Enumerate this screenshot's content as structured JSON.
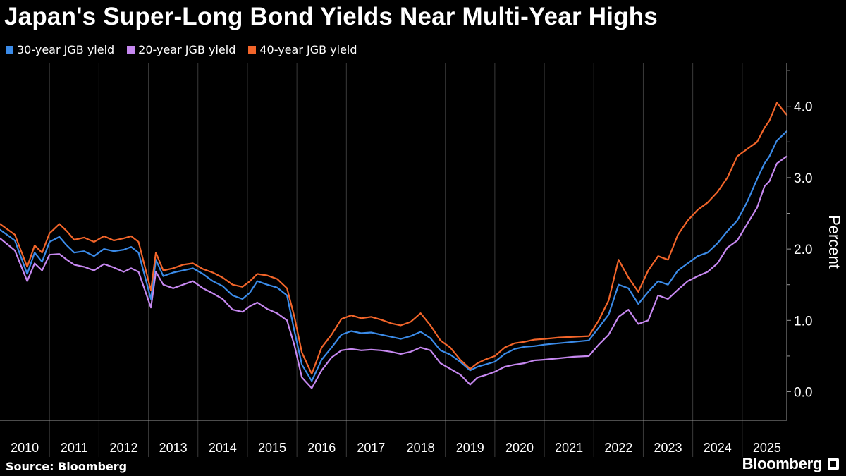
{
  "chart_data": {
    "type": "line",
    "title": "Japan's Super-Long Bond Yields Near Multi-Year Highs",
    "ylabel": "Percent",
    "xlabel": "",
    "ylim": [
      -0.4,
      4.6
    ],
    "xlim": [
      2010.0,
      2025.9
    ],
    "x_ticks": [
      "2010",
      "2011",
      "2012",
      "2013",
      "2014",
      "2015",
      "2016",
      "2017",
      "2018",
      "2019",
      "2020",
      "2021",
      "2022",
      "2023",
      "2024",
      "2025"
    ],
    "y_ticks": [
      {
        "value": 0.0,
        "label": "0.0"
      },
      {
        "value": 1.0,
        "label": "1.0"
      },
      {
        "value": 2.0,
        "label": "2.0"
      },
      {
        "value": 3.0,
        "label": "3.0"
      },
      {
        "value": 4.0,
        "label": "4.0"
      }
    ],
    "grid": "vertical",
    "legend_position": "top-left",
    "series": [
      {
        "name": "30-year JGB yield",
        "color": "#3b8be8",
        "x": [
          2010.0,
          2010.3,
          2010.55,
          2010.7,
          2010.85,
          2011.0,
          2011.2,
          2011.35,
          2011.5,
          2011.7,
          2011.9,
          2012.1,
          2012.3,
          2012.5,
          2012.65,
          2012.8,
          2013.05,
          2013.15,
          2013.3,
          2013.5,
          2013.7,
          2013.9,
          2014.1,
          2014.3,
          2014.5,
          2014.7,
          2014.9,
          2015.05,
          2015.2,
          2015.4,
          2015.6,
          2015.8,
          2015.95,
          2016.1,
          2016.3,
          2016.5,
          2016.7,
          2016.9,
          2017.1,
          2017.3,
          2017.5,
          2017.7,
          2017.9,
          2018.1,
          2018.3,
          2018.5,
          2018.7,
          2018.9,
          2019.1,
          2019.3,
          2019.5,
          2019.65,
          2019.8,
          2020.0,
          2020.2,
          2020.4,
          2020.6,
          2020.8,
          2021.0,
          2021.3,
          2021.6,
          2021.9,
          2022.1,
          2022.3,
          2022.5,
          2022.7,
          2022.9,
          2023.1,
          2023.3,
          2023.5,
          2023.7,
          2023.9,
          2024.1,
          2024.3,
          2024.5,
          2024.7,
          2024.9,
          2025.1,
          2025.3,
          2025.45,
          2025.55,
          2025.7,
          2025.9
        ],
        "values": [
          2.27,
          2.12,
          1.65,
          1.95,
          1.82,
          2.1,
          2.17,
          2.05,
          1.95,
          1.97,
          1.9,
          2.0,
          1.97,
          1.99,
          2.03,
          1.95,
          1.3,
          1.85,
          1.62,
          1.67,
          1.7,
          1.73,
          1.65,
          1.55,
          1.48,
          1.35,
          1.3,
          1.39,
          1.55,
          1.5,
          1.46,
          1.35,
          0.85,
          0.38,
          0.15,
          0.45,
          0.62,
          0.8,
          0.85,
          0.82,
          0.83,
          0.8,
          0.77,
          0.74,
          0.78,
          0.84,
          0.75,
          0.58,
          0.52,
          0.42,
          0.3,
          0.35,
          0.38,
          0.42,
          0.53,
          0.6,
          0.63,
          0.64,
          0.66,
          0.68,
          0.7,
          0.72,
          0.9,
          1.08,
          1.5,
          1.45,
          1.23,
          1.4,
          1.55,
          1.5,
          1.7,
          1.8,
          1.9,
          1.95,
          2.08,
          2.25,
          2.4,
          2.66,
          2.98,
          3.2,
          3.3,
          3.52,
          3.65
        ]
      },
      {
        "name": "20-year JGB yield",
        "color": "#c688f0",
        "x": [
          2010.0,
          2010.3,
          2010.55,
          2010.7,
          2010.85,
          2011.0,
          2011.2,
          2011.35,
          2011.5,
          2011.7,
          2011.9,
          2012.1,
          2012.3,
          2012.5,
          2012.65,
          2012.8,
          2013.05,
          2013.15,
          2013.3,
          2013.5,
          2013.7,
          2013.9,
          2014.1,
          2014.3,
          2014.5,
          2014.7,
          2014.9,
          2015.05,
          2015.2,
          2015.4,
          2015.6,
          2015.8,
          2015.95,
          2016.1,
          2016.3,
          2016.5,
          2016.7,
          2016.9,
          2017.1,
          2017.3,
          2017.5,
          2017.7,
          2017.9,
          2018.1,
          2018.3,
          2018.5,
          2018.7,
          2018.9,
          2019.1,
          2019.3,
          2019.5,
          2019.65,
          2019.8,
          2020.0,
          2020.2,
          2020.4,
          2020.6,
          2020.8,
          2021.0,
          2021.3,
          2021.6,
          2021.9,
          2022.1,
          2022.3,
          2022.5,
          2022.7,
          2022.9,
          2023.1,
          2023.3,
          2023.5,
          2023.7,
          2023.9,
          2024.1,
          2024.3,
          2024.5,
          2024.7,
          2024.9,
          2025.1,
          2025.3,
          2025.45,
          2025.55,
          2025.7,
          2025.9
        ],
        "values": [
          2.15,
          1.98,
          1.55,
          1.8,
          1.7,
          1.92,
          1.93,
          1.85,
          1.78,
          1.75,
          1.7,
          1.79,
          1.74,
          1.68,
          1.73,
          1.68,
          1.18,
          1.68,
          1.5,
          1.45,
          1.5,
          1.55,
          1.45,
          1.38,
          1.3,
          1.15,
          1.12,
          1.2,
          1.25,
          1.16,
          1.1,
          1.0,
          0.65,
          0.2,
          0.05,
          0.3,
          0.48,
          0.58,
          0.6,
          0.58,
          0.59,
          0.58,
          0.56,
          0.53,
          0.56,
          0.62,
          0.58,
          0.4,
          0.32,
          0.24,
          0.1,
          0.2,
          0.23,
          0.28,
          0.35,
          0.38,
          0.4,
          0.44,
          0.45,
          0.47,
          0.49,
          0.5,
          0.66,
          0.8,
          1.05,
          1.15,
          0.95,
          1.0,
          1.35,
          1.3,
          1.43,
          1.55,
          1.62,
          1.68,
          1.8,
          2.02,
          2.12,
          2.35,
          2.58,
          2.88,
          2.95,
          3.2,
          3.3
        ]
      },
      {
        "name": "40-year JGB yield",
        "color": "#f2652a",
        "x": [
          2010.0,
          2010.3,
          2010.55,
          2010.7,
          2010.85,
          2011.0,
          2011.2,
          2011.35,
          2011.5,
          2011.7,
          2011.9,
          2012.1,
          2012.3,
          2012.5,
          2012.65,
          2012.8,
          2013.05,
          2013.15,
          2013.3,
          2013.5,
          2013.7,
          2013.9,
          2014.1,
          2014.3,
          2014.5,
          2014.7,
          2014.9,
          2015.05,
          2015.2,
          2015.4,
          2015.6,
          2015.8,
          2015.95,
          2016.1,
          2016.3,
          2016.5,
          2016.7,
          2016.9,
          2017.1,
          2017.3,
          2017.5,
          2017.7,
          2017.9,
          2018.1,
          2018.3,
          2018.5,
          2018.7,
          2018.9,
          2019.1,
          2019.3,
          2019.5,
          2019.65,
          2019.8,
          2020.0,
          2020.2,
          2020.4,
          2020.6,
          2020.8,
          2021.0,
          2021.3,
          2021.6,
          2021.9,
          2022.1,
          2022.3,
          2022.5,
          2022.7,
          2022.9,
          2023.1,
          2023.3,
          2023.5,
          2023.7,
          2023.9,
          2024.1,
          2024.3,
          2024.5,
          2024.7,
          2024.9,
          2025.1,
          2025.3,
          2025.45,
          2025.55,
          2025.7,
          2025.9
        ],
        "values": [
          2.35,
          2.2,
          1.75,
          2.05,
          1.95,
          2.22,
          2.35,
          2.25,
          2.13,
          2.16,
          2.1,
          2.18,
          2.12,
          2.15,
          2.18,
          2.1,
          1.42,
          1.95,
          1.7,
          1.73,
          1.78,
          1.8,
          1.72,
          1.67,
          1.6,
          1.5,
          1.47,
          1.55,
          1.65,
          1.63,
          1.58,
          1.45,
          1.05,
          0.55,
          0.25,
          0.62,
          0.8,
          1.02,
          1.07,
          1.03,
          1.05,
          1.01,
          0.96,
          0.93,
          0.98,
          1.1,
          0.93,
          0.72,
          0.62,
          0.45,
          0.32,
          0.4,
          0.45,
          0.5,
          0.62,
          0.68,
          0.7,
          0.73,
          0.74,
          0.76,
          0.77,
          0.78,
          1.0,
          1.28,
          1.85,
          1.6,
          1.4,
          1.7,
          1.9,
          1.85,
          2.2,
          2.4,
          2.55,
          2.65,
          2.8,
          3.0,
          3.3,
          3.4,
          3.5,
          3.7,
          3.8,
          4.05,
          3.88
        ]
      }
    ]
  },
  "source": "Source: Bloomberg",
  "brand": "Bloomberg",
  "colors": {
    "background": "#000000",
    "text": "#ffffff",
    "axis": "#9a9a9a",
    "grid": "#3a3a3a"
  }
}
